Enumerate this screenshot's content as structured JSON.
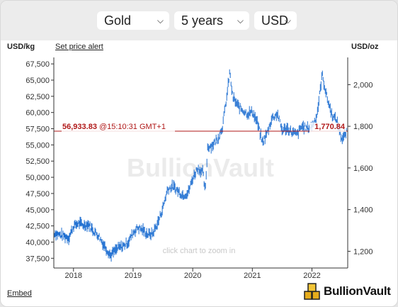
{
  "controls": {
    "metal": "Gold",
    "period": "5 years",
    "currency": "USD"
  },
  "left_unit_label": "USD/kg",
  "price_alert_link": "Set price alert",
  "right_unit_label": "USD/oz",
  "watermark": "BullionVault",
  "zoom_hint": "click chart to zoom in",
  "embed_link": "Embed",
  "logo_text": "BullionVault",
  "current_price": {
    "kg_value": "56,933.83",
    "timestamp": "@15:10:31 GMT+1",
    "oz_value": "1,770.84"
  },
  "colors": {
    "series": "#1f6fd1",
    "current_line": "#b01818",
    "background": "#ffffff",
    "axis": "#333333"
  },
  "chart_data": {
    "type": "line",
    "left_axis": {
      "label": "USD/kg",
      "ticks": [
        "37,500",
        "40,000",
        "42,500",
        "45,000",
        "47,500",
        "50,000",
        "52,500",
        "55,000",
        "57,500",
        "60,000",
        "62,500",
        "65,000",
        "67,500"
      ],
      "range": [
        36000,
        68500
      ]
    },
    "right_axis": {
      "label": "USD/oz",
      "ticks": [
        "1,200",
        "1,400",
        "1,600",
        "1,800",
        "2,000"
      ],
      "range": [
        1119.7,
        2130.5
      ]
    },
    "x_axis": {
      "ticks": [
        "2018",
        "2019",
        "2020",
        "2021",
        "2022"
      ],
      "range": [
        2017.67,
        2022.6
      ]
    },
    "current_value_kg": 56933.83,
    "current_value_oz": 1770.84,
    "series": [
      {
        "unit": "USD/oz",
        "x": [
          2017.67,
          2017.75,
          2017.83,
          2017.92,
          2018.0,
          2018.08,
          2018.17,
          2018.25,
          2018.33,
          2018.42,
          2018.5,
          2018.58,
          2018.62,
          2018.67,
          2018.75,
          2018.83,
          2018.92,
          2019.0,
          2019.08,
          2019.17,
          2019.25,
          2019.33,
          2019.42,
          2019.5,
          2019.58,
          2019.67,
          2019.75,
          2019.83,
          2019.92,
          2020.0,
          2020.08,
          2020.17,
          2020.21,
          2020.25,
          2020.33,
          2020.42,
          2020.5,
          2020.58,
          2020.62,
          2020.67,
          2020.75,
          2020.83,
          2020.92,
          2021.0,
          2021.08,
          2021.17,
          2021.25,
          2021.33,
          2021.42,
          2021.5,
          2021.58,
          2021.67,
          2021.75,
          2021.83,
          2021.92,
          2022.0,
          2022.08,
          2022.12,
          2022.17,
          2022.25,
          2022.33,
          2022.42,
          2022.5,
          2022.58
        ],
        "y": [
          1290,
          1280,
          1275,
          1265,
          1320,
          1335,
          1325,
          1330,
          1300,
          1275,
          1235,
          1200,
          1180,
          1195,
          1215,
          1225,
          1245,
          1290,
          1315,
          1300,
          1280,
          1285,
          1340,
          1410,
          1500,
          1510,
          1490,
          1470,
          1480,
          1550,
          1600,
          1580,
          1480,
          1700,
          1710,
          1740,
          1800,
          1960,
          2060,
          1940,
          1900,
          1880,
          1860,
          1870,
          1820,
          1720,
          1770,
          1840,
          1860,
          1780,
          1790,
          1770,
          1760,
          1800,
          1790,
          1800,
          1850,
          1930,
          2050,
          1940,
          1860,
          1820,
          1740,
          1770
        ]
      }
    ]
  }
}
